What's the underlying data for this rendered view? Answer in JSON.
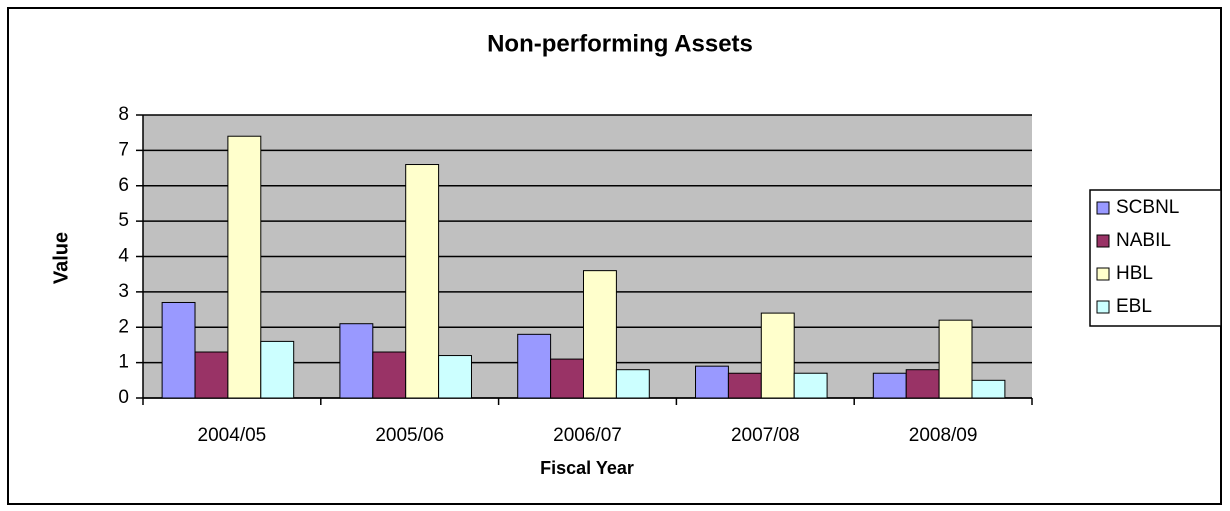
{
  "chart_data": {
    "type": "bar",
    "title": "Non-performing Assets",
    "x_label": "Fiscal Year",
    "y_label": "Value",
    "categories": [
      "2004/05",
      "2005/06",
      "2006/07",
      "2007/08",
      "2008/09"
    ],
    "series": [
      {
        "name": "SCBNL",
        "color": "#9999ff",
        "values": [
          2.7,
          2.1,
          1.8,
          0.9,
          0.7
        ]
      },
      {
        "name": "NABIL",
        "color": "#993366",
        "values": [
          1.3,
          1.3,
          1.1,
          0.7,
          0.8
        ]
      },
      {
        "name": "HBL",
        "color": "#ffffcc",
        "values": [
          7.4,
          6.6,
          3.6,
          2.4,
          2.2
        ]
      },
      {
        "name": "EBL",
        "color": "#ccffff",
        "values": [
          1.6,
          1.2,
          0.8,
          0.7,
          0.5
        ]
      }
    ],
    "ylim": [
      0,
      8
    ],
    "yticks": [
      0,
      1,
      2,
      3,
      4,
      5,
      6,
      7,
      8
    ],
    "grid": true,
    "legend": "right"
  }
}
